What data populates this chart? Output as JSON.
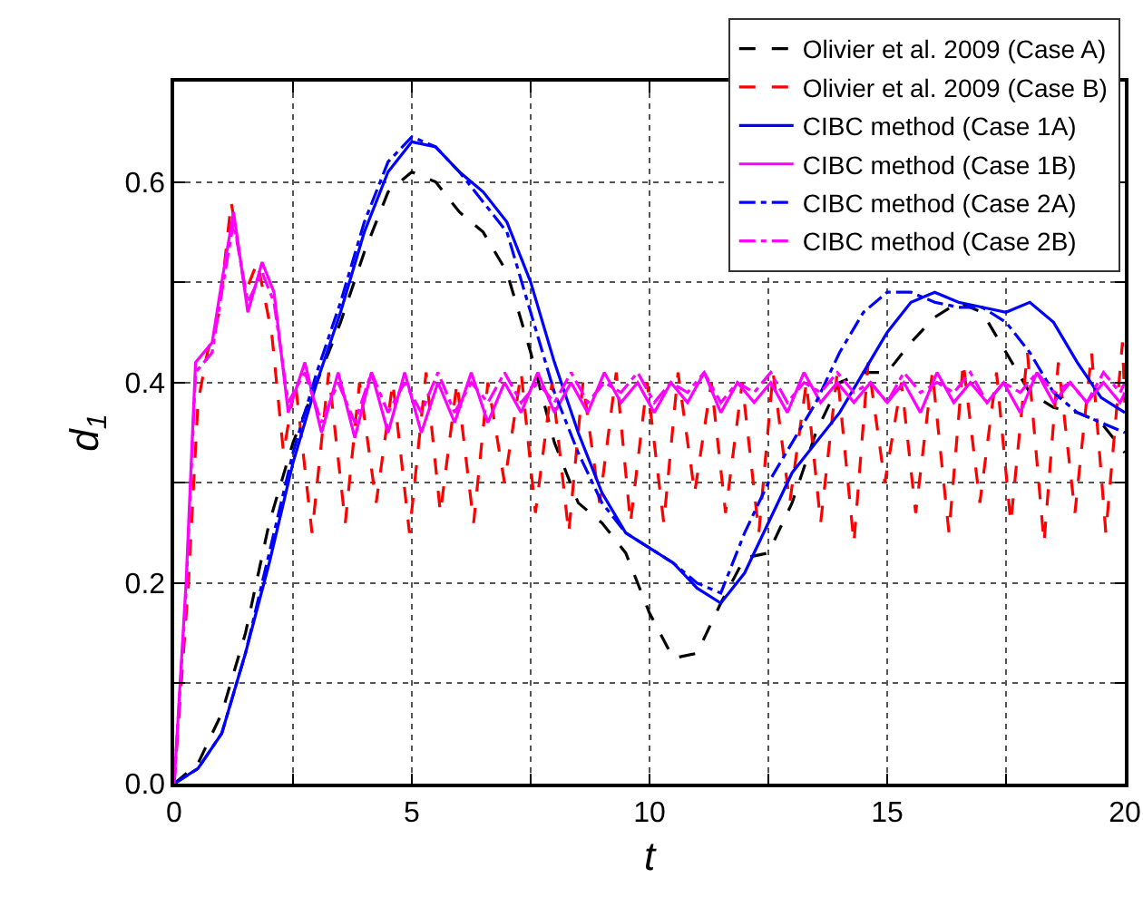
{
  "chart_data": {
    "type": "line",
    "xlabel": "t",
    "ylabel": "d$_{1}$",
    "xlim": [
      0,
      20
    ],
    "ylim": [
      0,
      0.7
    ],
    "xticks": [
      0,
      {
        "value": 2.5,
        "label": null
      },
      5,
      {
        "value": 7.5,
        "label": null
      },
      10,
      {
        "value": 12.5,
        "label": null
      },
      15,
      {
        "value": 17.5,
        "label": null
      },
      20
    ],
    "yticks": [
      {
        "value": 0,
        "label": "0.0"
      },
      {
        "value": 0.1,
        "label": null
      },
      0.2,
      {
        "value": 0.3,
        "label": null
      },
      0.4,
      {
        "value": 0.5,
        "label": null
      },
      0.6
    ],
    "grid": true,
    "legend": "top right",
    "marker": "none",
    "series": [
      {
        "name": "Olivier et al. 2009 (Case A)",
        "color": "#000000",
        "line_style": "dashed",
        "x": [
          0,
          0.5,
          1,
          1.5,
          2,
          2.5,
          3,
          3.5,
          4,
          4.5,
          5,
          5.5,
          6,
          6.5,
          7,
          7.5,
          8,
          8.5,
          9,
          9.5,
          10,
          10.5,
          11,
          11.5,
          12,
          12.5,
          13,
          13.5,
          14,
          14.5,
          15,
          15.5,
          16,
          16.5,
          17,
          17.5,
          18,
          18.5,
          19,
          19.5,
          20
        ],
        "values": [
          0,
          0.02,
          0.07,
          0.15,
          0.26,
          0.34,
          0.4,
          0.46,
          0.53,
          0.59,
          0.61,
          0.6,
          0.57,
          0.55,
          0.51,
          0.43,
          0.34,
          0.28,
          0.26,
          0.23,
          0.17,
          0.125,
          0.13,
          0.18,
          0.225,
          0.23,
          0.28,
          0.35,
          0.4,
          0.41,
          0.41,
          0.44,
          0.465,
          0.48,
          0.47,
          0.43,
          0.39,
          0.375,
          0.37,
          0.36,
          0.33
        ]
      },
      {
        "name": "Olivier et al. 2009 (Case B)",
        "color": "#ff0000",
        "line_style": "dashed",
        "x": [
          0,
          0.3,
          0.5,
          0.7,
          0.95,
          1.2,
          1.5,
          1.75,
          2.05,
          2.3,
          2.55,
          2.9,
          3.25,
          3.6,
          3.9,
          4.25,
          4.6,
          4.95,
          5.3,
          5.6,
          5.95,
          6.3,
          6.6,
          6.95,
          7.3,
          7.6,
          7.95,
          8.3,
          8.6,
          8.95,
          9.3,
          9.6,
          9.95,
          10.3,
          10.6,
          10.95,
          11.3,
          11.6,
          11.95,
          12.3,
          12.6,
          12.95,
          13.3,
          13.6,
          13.95,
          14.3,
          14.6,
          14.95,
          15.3,
          15.6,
          15.95,
          16.3,
          16.6,
          16.95,
          17.3,
          17.6,
          17.95,
          18.3,
          18.6,
          18.95,
          19.3,
          19.6,
          19.95,
          20
        ],
        "values": [
          0,
          0.2,
          0.38,
          0.43,
          0.47,
          0.58,
          0.49,
          0.52,
          0.45,
          0.33,
          0.4,
          0.25,
          0.41,
          0.26,
          0.4,
          0.28,
          0.4,
          0.25,
          0.41,
          0.27,
          0.4,
          0.26,
          0.4,
          0.3,
          0.41,
          0.27,
          0.4,
          0.25,
          0.4,
          0.28,
          0.41,
          0.26,
          0.4,
          0.26,
          0.41,
          0.29,
          0.4,
          0.27,
          0.4,
          0.25,
          0.41,
          0.28,
          0.4,
          0.26,
          0.41,
          0.24,
          0.42,
          0.3,
          0.4,
          0.27,
          0.41,
          0.25,
          0.42,
          0.28,
          0.41,
          0.26,
          0.43,
          0.24,
          0.42,
          0.27,
          0.43,
          0.25,
          0.44,
          0.38
        ]
      },
      {
        "name": "CIBC method (Case 1A)",
        "color": "#0000ff",
        "line_style": "solid",
        "x": [
          0,
          0.5,
          1,
          1.5,
          2,
          2.5,
          3,
          3.5,
          4,
          4.5,
          5,
          5.5,
          6,
          6.5,
          7,
          7.5,
          8,
          8.5,
          9,
          9.5,
          10,
          10.5,
          11,
          11.5,
          12,
          12.5,
          13,
          13.5,
          14,
          14.5,
          15,
          15.5,
          16,
          16.5,
          17,
          17.5,
          18,
          18.5,
          19,
          19.5,
          20
        ],
        "values": [
          0,
          0.015,
          0.05,
          0.13,
          0.22,
          0.32,
          0.4,
          0.47,
          0.55,
          0.61,
          0.64,
          0.635,
          0.61,
          0.59,
          0.56,
          0.5,
          0.42,
          0.35,
          0.29,
          0.25,
          0.235,
          0.22,
          0.195,
          0.18,
          0.21,
          0.26,
          0.31,
          0.34,
          0.37,
          0.41,
          0.45,
          0.48,
          0.49,
          0.48,
          0.475,
          0.47,
          0.48,
          0.46,
          0.42,
          0.385,
          0.37
        ]
      },
      {
        "name": "CIBC method (Case 1B)",
        "color": "#ff00ff",
        "line_style": "solid",
        "x": [
          0,
          0.25,
          0.45,
          0.8,
          1,
          1.25,
          1.55,
          1.85,
          2.1,
          2.4,
          2.75,
          3.1,
          3.45,
          3.8,
          4.15,
          4.5,
          4.85,
          5.2,
          5.55,
          5.9,
          6.25,
          6.6,
          6.95,
          7.3,
          7.65,
          8,
          8.35,
          8.7,
          9.05,
          9.4,
          9.75,
          10.1,
          10.45,
          10.8,
          11.15,
          11.5,
          11.85,
          12.2,
          12.55,
          12.9,
          13.25,
          13.6,
          13.95,
          14.3,
          14.65,
          15,
          15.35,
          15.7,
          16.05,
          16.4,
          16.75,
          17.1,
          17.45,
          17.8,
          18.15,
          18.5,
          18.85,
          19.2,
          19.55,
          19.9,
          20
        ],
        "values": [
          0,
          0.2,
          0.42,
          0.44,
          0.5,
          0.57,
          0.47,
          0.52,
          0.49,
          0.37,
          0.42,
          0.35,
          0.41,
          0.345,
          0.41,
          0.35,
          0.41,
          0.35,
          0.4,
          0.36,
          0.41,
          0.36,
          0.4,
          0.37,
          0.41,
          0.37,
          0.4,
          0.37,
          0.41,
          0.38,
          0.4,
          0.37,
          0.4,
          0.38,
          0.41,
          0.37,
          0.4,
          0.38,
          0.4,
          0.37,
          0.41,
          0.38,
          0.4,
          0.38,
          0.4,
          0.38,
          0.4,
          0.37,
          0.41,
          0.38,
          0.4,
          0.38,
          0.4,
          0.37,
          0.41,
          0.38,
          0.4,
          0.38,
          0.4,
          0.38,
          0.39
        ]
      },
      {
        "name": "CIBC method (Case 2A)",
        "color": "#0000ff",
        "line_style": "dashdot",
        "x": [
          0,
          0.5,
          1,
          1.5,
          2,
          2.5,
          3,
          3.5,
          4,
          4.5,
          5,
          5.5,
          6,
          6.5,
          7,
          7.5,
          8,
          8.5,
          9,
          9.5,
          10,
          10.5,
          11,
          11.5,
          12,
          12.5,
          13,
          13.5,
          14,
          14.5,
          15,
          15.5,
          16,
          16.5,
          17,
          17.5,
          18,
          18.5,
          19,
          19.5,
          20
        ],
        "values": [
          0,
          0.015,
          0.05,
          0.13,
          0.23,
          0.33,
          0.41,
          0.48,
          0.56,
          0.62,
          0.645,
          0.635,
          0.61,
          0.58,
          0.55,
          0.47,
          0.39,
          0.33,
          0.28,
          0.25,
          0.235,
          0.22,
          0.2,
          0.19,
          0.25,
          0.3,
          0.34,
          0.38,
          0.43,
          0.47,
          0.49,
          0.49,
          0.48,
          0.475,
          0.475,
          0.46,
          0.43,
          0.39,
          0.37,
          0.36,
          0.35
        ]
      },
      {
        "name": "CIBC method (Case 2B)",
        "color": "#ff00ff",
        "line_style": "dashdot",
        "x": [
          0,
          0.25,
          0.45,
          0.8,
          1,
          1.25,
          1.55,
          1.85,
          2.1,
          2.4,
          2.75,
          3.1,
          3.45,
          3.8,
          4.15,
          4.5,
          4.85,
          5.2,
          5.55,
          5.9,
          6.25,
          6.6,
          6.95,
          7.3,
          7.65,
          8,
          8.35,
          8.7,
          9.05,
          9.4,
          9.75,
          10.1,
          10.45,
          10.8,
          11.15,
          11.5,
          11.85,
          12.2,
          12.55,
          12.9,
          13.25,
          13.6,
          13.95,
          14.3,
          14.65,
          15,
          15.35,
          15.7,
          16.05,
          16.4,
          16.75,
          17.1,
          17.45,
          17.8,
          18.15,
          18.5,
          18.85,
          19.2,
          19.55,
          19.9,
          20
        ],
        "values": [
          0,
          0.19,
          0.41,
          0.43,
          0.49,
          0.56,
          0.48,
          0.51,
          0.48,
          0.38,
          0.41,
          0.36,
          0.4,
          0.36,
          0.41,
          0.37,
          0.4,
          0.37,
          0.41,
          0.37,
          0.4,
          0.38,
          0.41,
          0.38,
          0.4,
          0.38,
          0.41,
          0.38,
          0.4,
          0.39,
          0.41,
          0.38,
          0.4,
          0.39,
          0.41,
          0.38,
          0.4,
          0.39,
          0.41,
          0.38,
          0.4,
          0.39,
          0.41,
          0.39,
          0.4,
          0.38,
          0.41,
          0.39,
          0.4,
          0.39,
          0.41,
          0.38,
          0.4,
          0.39,
          0.41,
          0.39,
          0.4,
          0.38,
          0.41,
          0.39,
          0.4
        ]
      }
    ]
  }
}
